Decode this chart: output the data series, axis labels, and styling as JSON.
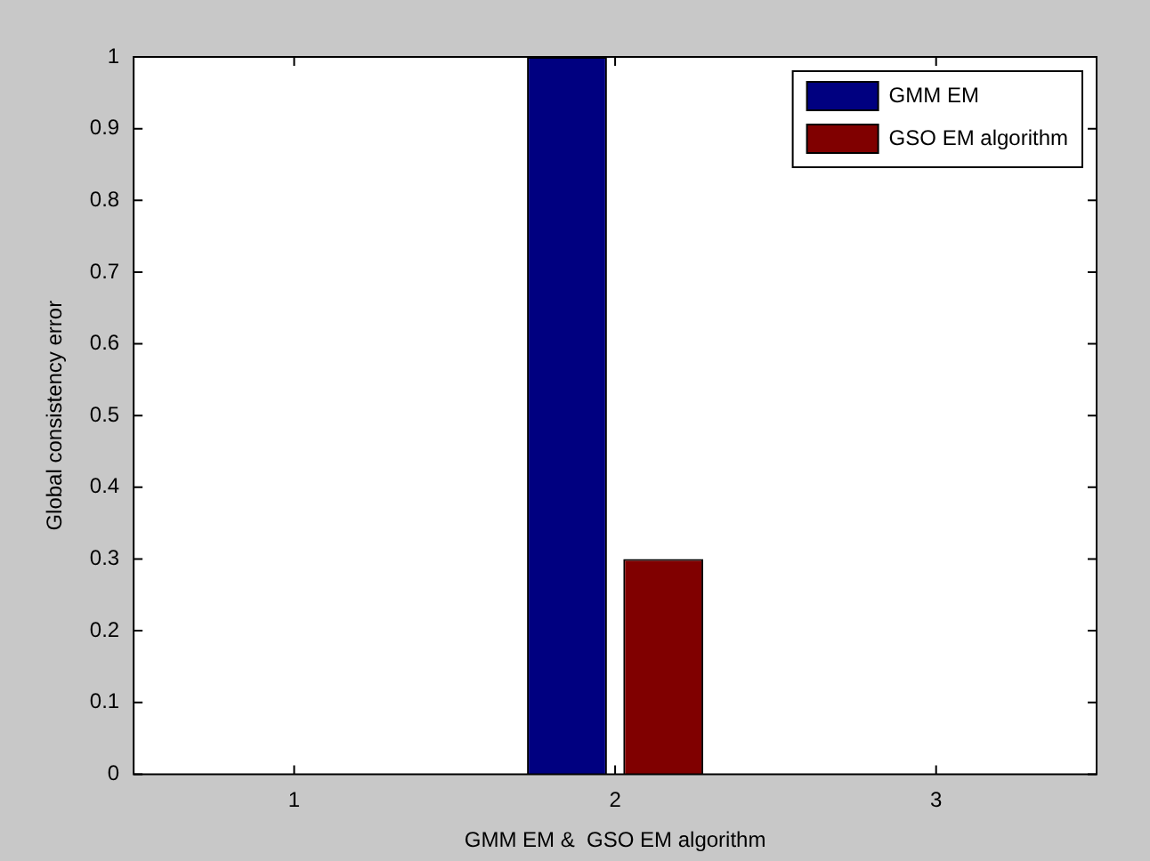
{
  "chart_data": {
    "type": "bar",
    "xlabel": "GMM EM &  GSO EM algorithm",
    "ylabel": "Global consistency error",
    "categories": [
      "1",
      "2",
      "3"
    ],
    "series": [
      {
        "name": "GMM EM",
        "color": "#000080",
        "values": [
          null,
          1,
          null
        ]
      },
      {
        "name": "GSO EM algorithm",
        "color": "#800000",
        "values": [
          null,
          0.3,
          null
        ]
      }
    ],
    "ylim": [
      0,
      1
    ],
    "yticks": [
      0,
      0.1,
      0.2,
      0.3,
      0.4,
      0.5,
      0.6,
      0.7,
      0.8,
      0.9,
      1
    ],
    "grid": false,
    "legend": "top right"
  }
}
